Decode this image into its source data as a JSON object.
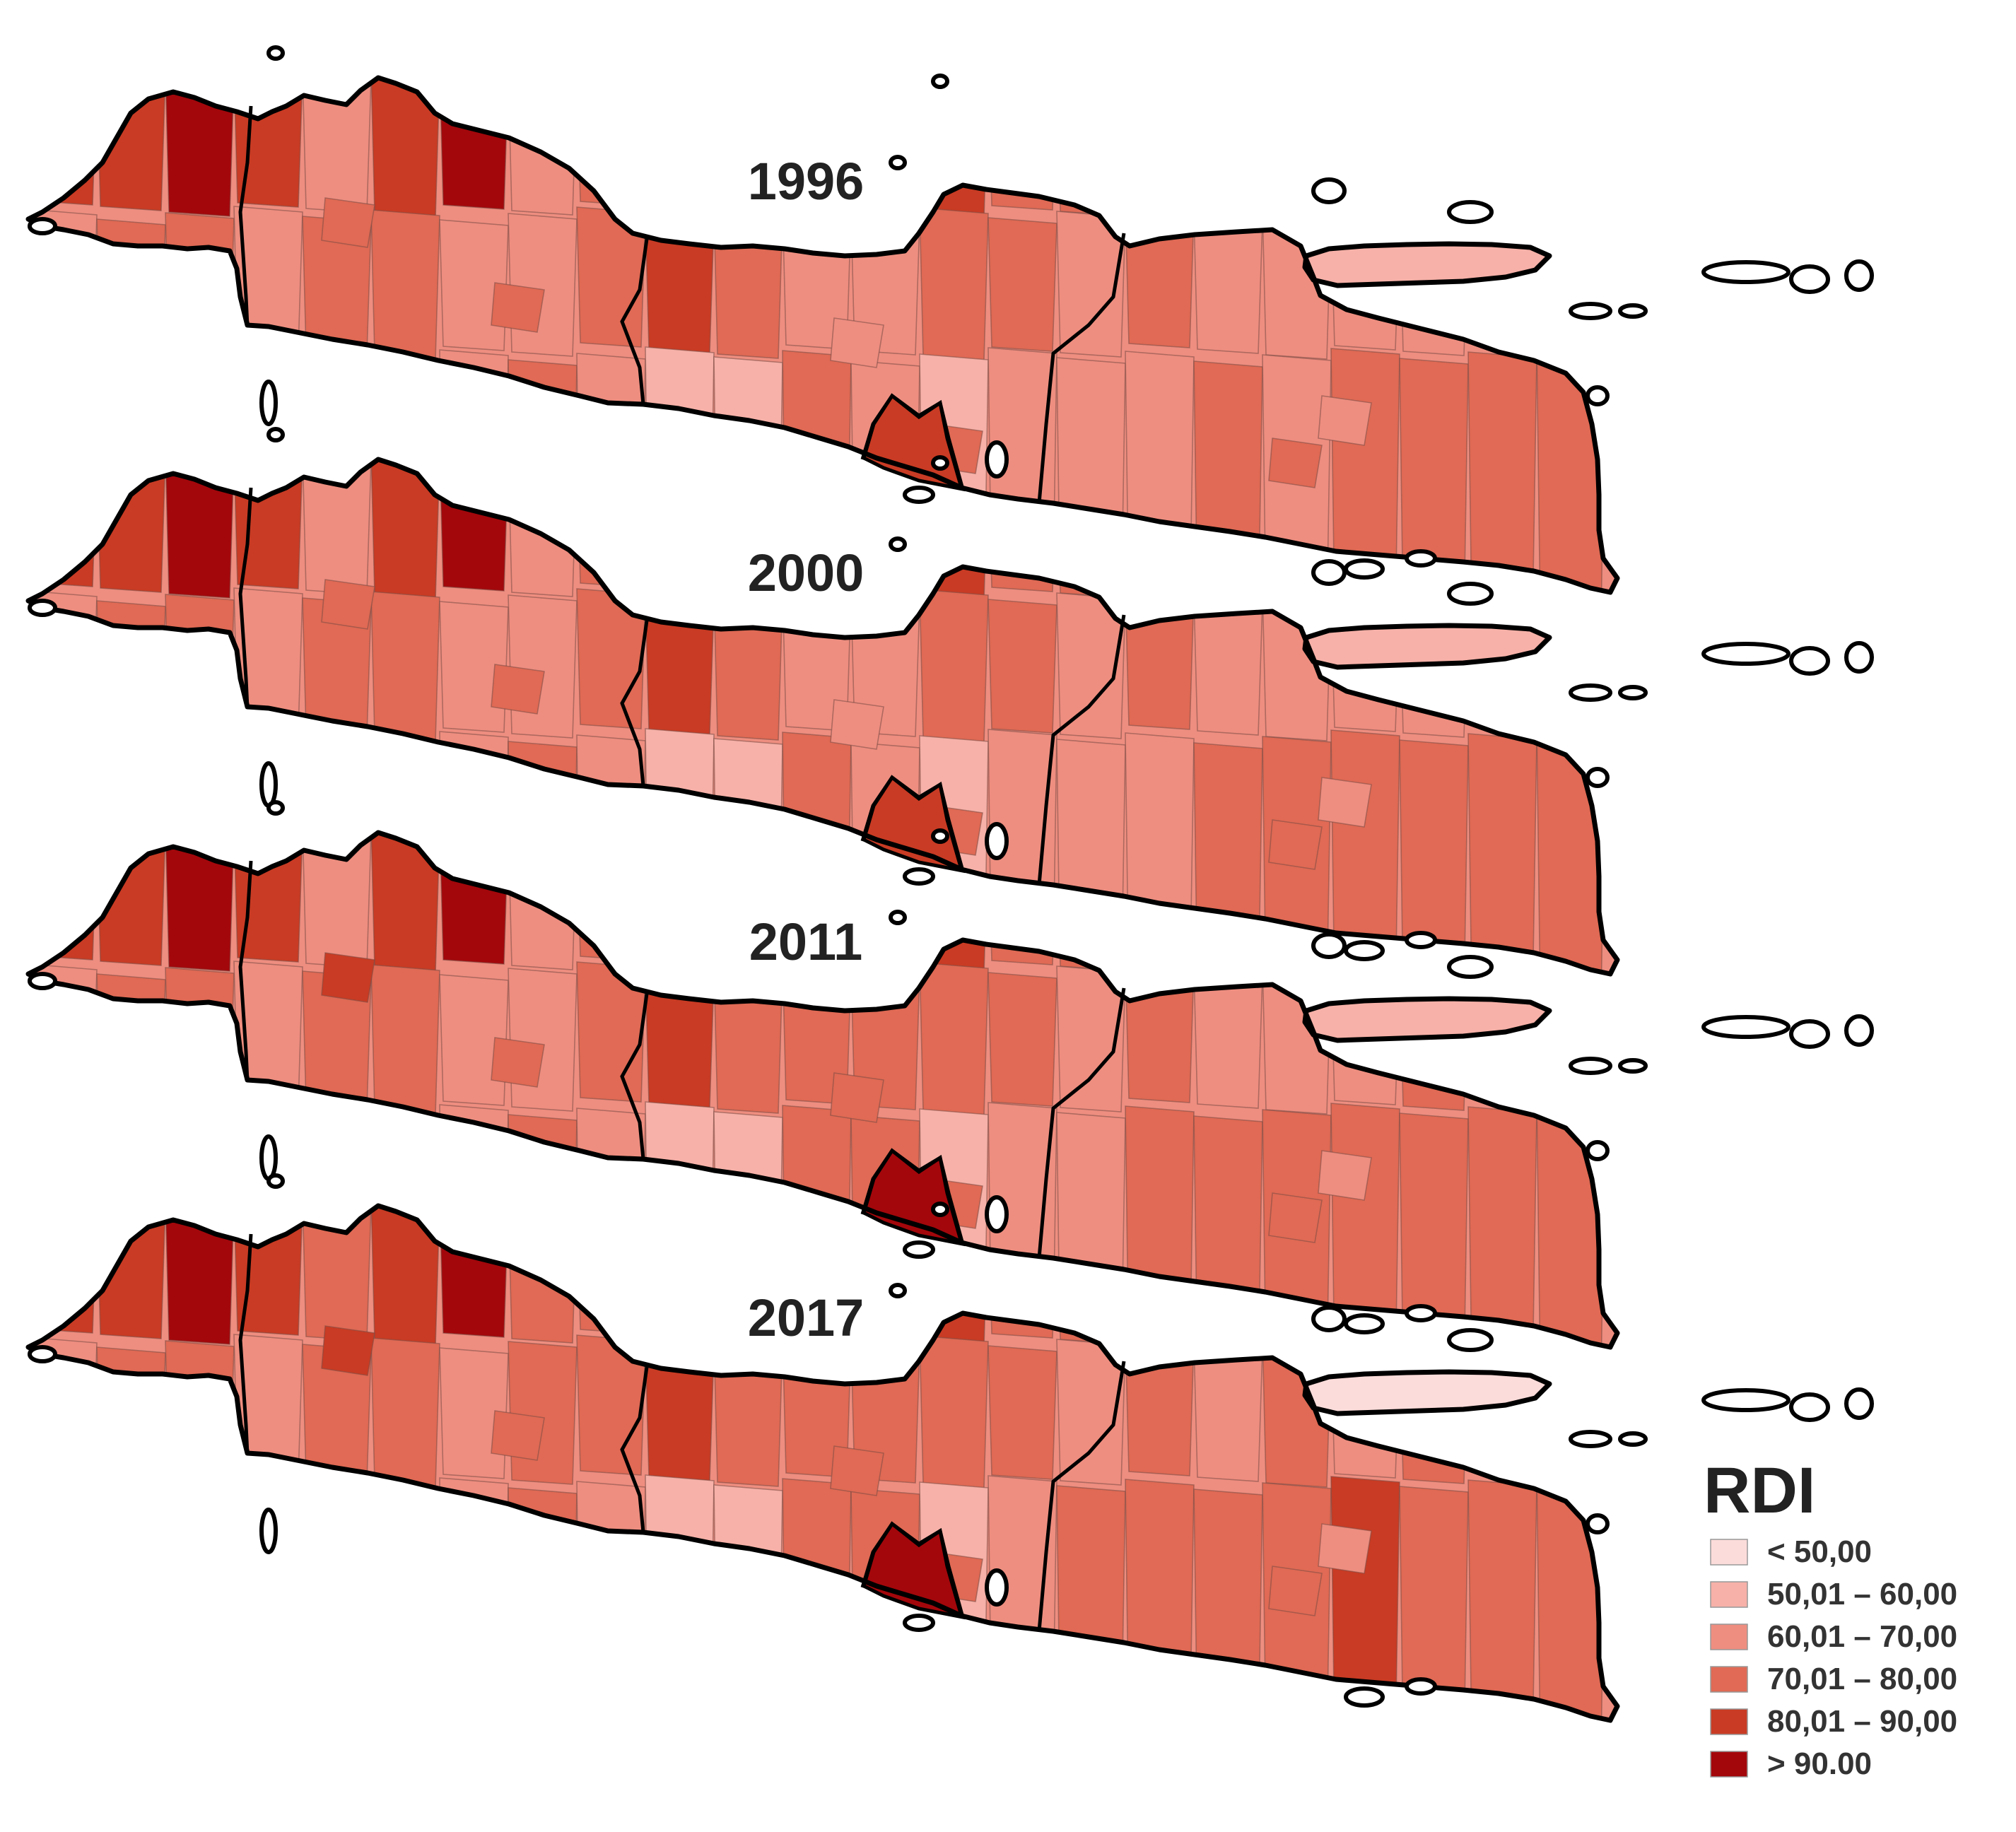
{
  "maps": [
    {
      "year": "1996",
      "zones": [
        4,
        4,
        5,
        4,
        2,
        4,
        5,
        2,
        3,
        3,
        3,
        4,
        4,
        4,
        3,
        3,
        2,
        2,
        3,
        2,
        3,
        2,
        2,
        2,
        3,
        3,
        2,
        3,
        3,
        2,
        2,
        3,
        4,
        3,
        2,
        2,
        3,
        3,
        2,
        3,
        2,
        2,
        2,
        2,
        2,
        3,
        3,
        2,
        2,
        2,
        2,
        3,
        2,
        3,
        2,
        1,
        1,
        3,
        2,
        1,
        2,
        2,
        2,
        3,
        2,
        3,
        3,
        3,
        3,
        3,
        3,
        2,
        2,
        3,
        3,
        2,
        3,
        3,
        4,
        3,
        3,
        2,
        2,
        3,
        2,
        2,
        2,
        3,
        3,
        2,
        2,
        2
      ],
      "yogya": 4
    },
    {
      "year": "2000",
      "zones": [
        4,
        4,
        5,
        4,
        2,
        4,
        5,
        2,
        3,
        3,
        3,
        4,
        4,
        4,
        3,
        3,
        2,
        2,
        3,
        2,
        3,
        2,
        2,
        2,
        3,
        3,
        2,
        3,
        3,
        2,
        2,
        3,
        4,
        3,
        2,
        2,
        3,
        3,
        2,
        3,
        2,
        2,
        2,
        2,
        2,
        3,
        3,
        2,
        2,
        2,
        2,
        3,
        2,
        3,
        2,
        1,
        1,
        3,
        2,
        1,
        2,
        2,
        2,
        3,
        3,
        3,
        3,
        3,
        3,
        3,
        3,
        2,
        2,
        3,
        3,
        2,
        3,
        3,
        4,
        3,
        3,
        2,
        2,
        3,
        2,
        2,
        2,
        3,
        3,
        2,
        2,
        2
      ],
      "yogya": 4
    },
    {
      "year": "2011",
      "zones": [
        4,
        4,
        5,
        4,
        2,
        4,
        5,
        2,
        3,
        3,
        4,
        4,
        4,
        4,
        3,
        3,
        2,
        2,
        3,
        2,
        3,
        2,
        2,
        2,
        3,
        3,
        2,
        3,
        3,
        2,
        2,
        3,
        4,
        3,
        3,
        3,
        3,
        3,
        2,
        3,
        2,
        2,
        2,
        3,
        3,
        3,
        3,
        2,
        2,
        2,
        3,
        3,
        2,
        3,
        2,
        1,
        1,
        3,
        3,
        1,
        2,
        2,
        3,
        3,
        3,
        3,
        3,
        3,
        3,
        3,
        3,
        2,
        3,
        3,
        4,
        3,
        3,
        3,
        4,
        4,
        3,
        2,
        2,
        3,
        2,
        2,
        3,
        3,
        3,
        2,
        2,
        2
      ],
      "yogya": 5
    },
    {
      "year": "2017",
      "zones": [
        4,
        4,
        5,
        4,
        3,
        4,
        5,
        3,
        3,
        3,
        4,
        4,
        4,
        4,
        3,
        3,
        2,
        2,
        3,
        2,
        3,
        2,
        3,
        2,
        3,
        3,
        2,
        3,
        3,
        2,
        3,
        3,
        4,
        3,
        3,
        3,
        3,
        3,
        2,
        3,
        2,
        3,
        2,
        3,
        3,
        3,
        3,
        2,
        2,
        2,
        3,
        3,
        2,
        3,
        2,
        1,
        1,
        3,
        3,
        1,
        2,
        3,
        3,
        3,
        3,
        4,
        3,
        3,
        3,
        3,
        3,
        2,
        3,
        3,
        4,
        3,
        4,
        3,
        4,
        4,
        3,
        2,
        3,
        3,
        2,
        2,
        3,
        3,
        3,
        2,
        1,
        2
      ],
      "yogya": 5
    }
  ],
  "legend": {
    "title": "RDI",
    "items": [
      {
        "label": "< 50,00",
        "color": "#fcdcda"
      },
      {
        "label": "50,01 – 60,00",
        "color": "#f7b1a8"
      },
      {
        "label": "60,01 – 70,00",
        "color": "#ee8e80"
      },
      {
        "label": "70,01 – 80,00",
        "color": "#e06a55"
      },
      {
        "label": "80,01 – 90,00",
        "color": "#c93b24"
      },
      {
        "label": "> 90.00",
        "color": "#a3070b"
      }
    ]
  }
}
